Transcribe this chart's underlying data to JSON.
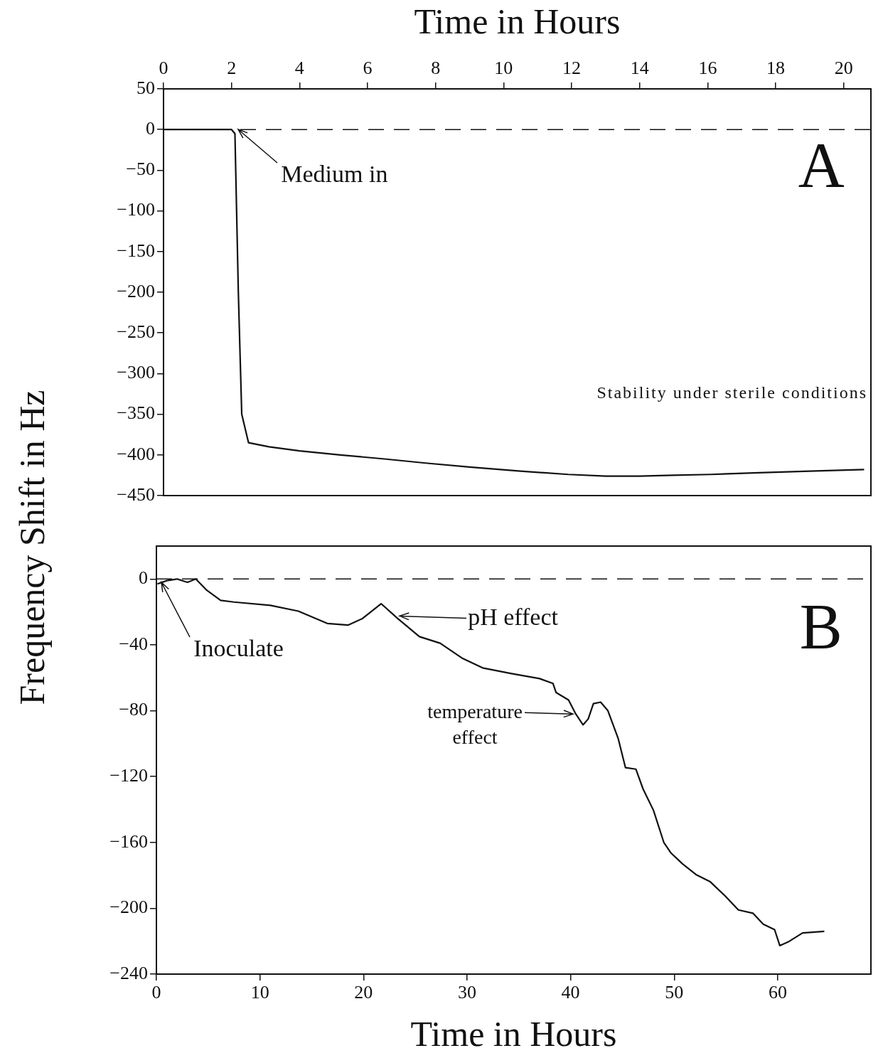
{
  "chart_data": [
    {
      "type": "line",
      "x2label": "Time in Hours",
      "ylabel": "Frequency Shift in Hz",
      "xlim": [
        0,
        20.8
      ],
      "xticks": [
        0,
        2,
        4,
        6,
        8,
        10,
        12,
        14,
        16,
        18,
        20
      ],
      "ylim": [
        -450,
        50
      ],
      "yticks": [
        50,
        0,
        -50,
        -100,
        -150,
        -200,
        -250,
        -300,
        -350,
        -400,
        -450
      ],
      "grid": false,
      "series": [
        {
          "color": "#111111",
          "x": [
            0,
            1,
            2,
            2.1,
            2.2,
            2.3,
            2.5,
            3.1,
            4,
            5.2,
            6.5,
            7.7,
            9,
            10.5,
            11.9,
            13,
            14,
            15,
            16.1,
            17.5,
            19,
            20.6
          ],
          "values": [
            0,
            0,
            0,
            -5,
            -200,
            -350,
            -385,
            -390,
            -395,
            -400,
            -405,
            -410,
            -415,
            -420,
            -424,
            -426,
            -426,
            -425,
            -424,
            -422,
            -420,
            -418
          ]
        }
      ],
      "ref_lines": [
        {
          "axis": "y",
          "value": 0,
          "line_style": "dashed"
        }
      ],
      "annotations": [
        {
          "text": "Medium in",
          "x": 2.2,
          "y": 0
        },
        "A",
        "Stability under sterile conditions"
      ]
    },
    {
      "type": "line",
      "xlabel": "Time in Hours",
      "xlim": [
        0,
        69
      ],
      "xticks": [
        0,
        10,
        20,
        30,
        40,
        50,
        60
      ],
      "ylim": [
        -240,
        20
      ],
      "yticks": [
        0,
        -40,
        -80,
        -120,
        -160,
        -200,
        -240
      ],
      "grid": false,
      "series": [
        {
          "color": "#111111",
          "x": [
            0.1,
            1,
            2,
            3,
            3.8,
            4.8,
            6.2,
            7.5,
            11,
            13.7,
            16.5,
            18.5,
            19.9,
            21.7,
            23.3,
            25.4,
            27.4,
            29.5,
            31.5,
            34.3,
            37,
            38.3,
            38.6,
            39.8,
            40.5,
            41.2,
            41.7,
            42.2,
            42.9,
            43.6,
            44.6,
            45.3,
            46.3,
            47,
            48,
            49,
            49.7,
            50.8,
            52.1,
            53.5,
            54.9,
            56.2,
            57.6,
            58.6,
            59.7,
            60.2,
            61,
            62.4,
            64.5
          ],
          "values": [
            -3,
            -1,
            0,
            -2,
            0,
            -6.5,
            -13,
            -14,
            -16,
            -19.5,
            -27,
            -28,
            -24,
            -15,
            -24,
            -35,
            -39,
            -48,
            -54,
            -57.5,
            -60.5,
            -63.5,
            -69,
            -73.5,
            -82,
            -88.6,
            -85,
            -75.7,
            -74.8,
            -80,
            -97,
            -114.6,
            -115.5,
            -127.6,
            -140.5,
            -160,
            -166.5,
            -173,
            -179.5,
            -184,
            -192.4,
            -201,
            -203,
            -209.7,
            -213,
            -222.7,
            -220.5,
            -215,
            -214
          ]
        }
      ],
      "ref_lines": [
        {
          "axis": "y",
          "value": 0,
          "line_style": "dashed"
        }
      ],
      "annotations": [
        {
          "text": "Inoculate",
          "x": 0.5,
          "y": -2
        },
        "pH effect",
        {
          "text": "temperature\neffect",
          "x": 40.5,
          "y": -82
        },
        "B"
      ]
    }
  ]
}
